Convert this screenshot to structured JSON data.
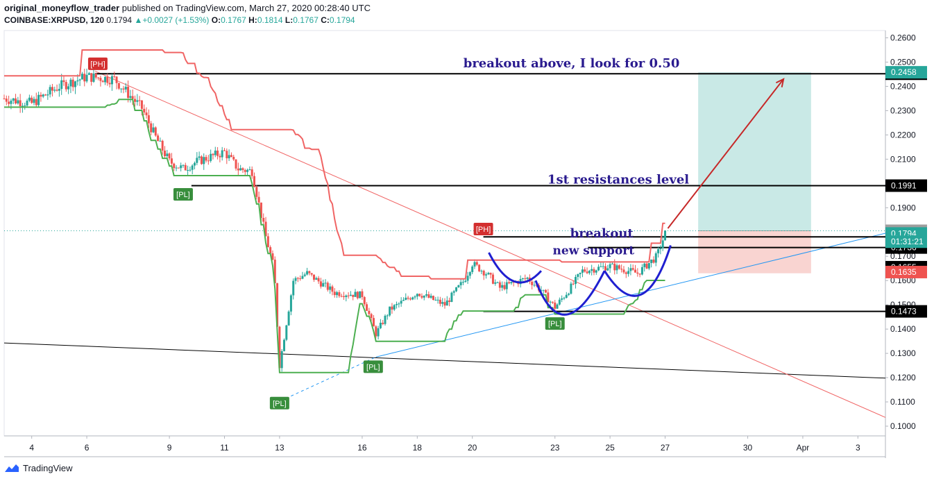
{
  "header": {
    "author": "original_moneyflow_trader",
    "published_text": "published on TradingView.com, March 27, 2020 00:28:40 UTC",
    "symbol": "COINBASE:XRPUSD, 120",
    "last": "0.1794",
    "change": "+0.0027 (+1.53%)",
    "o_label": "O:",
    "o": "0.1767",
    "h_label": "H:",
    "h": "0.1814",
    "l_label": "L:",
    "l": "0.1767",
    "c_label": "C:",
    "c": "0.1794"
  },
  "brand": "TradingView",
  "colors": {
    "up": "#26a69a",
    "down": "#ef5350",
    "trail": "#f06464",
    "support_line": "#4caf50",
    "annotation": "#2a1b8f",
    "arrow": "#c62828",
    "trend_blue": "#2196f3",
    "target_zone": "#b2dfdb",
    "stop_zone": "#f8c9c6"
  },
  "chart_data": {
    "type": "candlestick",
    "y_range": [
      0.096,
      0.263
    ],
    "x_range": [
      "2020-03-03",
      "2020-04-04"
    ],
    "y_ticks": [
      "0.2600",
      "0.2500",
      "0.2400",
      "0.2300",
      "0.2200",
      "0.2100",
      "0.2000",
      "0.1900",
      "0.1800",
      "0.1700",
      "0.1600",
      "0.1500",
      "0.1400",
      "0.1300",
      "0.1200",
      "0.1100",
      "0.1000"
    ],
    "x_ticks": [
      {
        "label": "4",
        "x": "2020-03-04"
      },
      {
        "label": "6",
        "x": "2020-03-06"
      },
      {
        "label": "9",
        "x": "2020-03-09"
      },
      {
        "label": "11",
        "x": "2020-03-11"
      },
      {
        "label": "13",
        "x": "2020-03-13"
      },
      {
        "label": "16",
        "x": "2020-03-16"
      },
      {
        "label": "18",
        "x": "2020-03-18"
      },
      {
        "label": "20",
        "x": "2020-03-20"
      },
      {
        "label": "23",
        "x": "2020-03-23"
      },
      {
        "label": "25",
        "x": "2020-03-25"
      },
      {
        "label": "27",
        "x": "2020-03-27"
      },
      {
        "label": "30",
        "x": "2020-03-30"
      },
      {
        "label": "Apr",
        "x": "2020-04-01"
      },
      {
        "label": "3",
        "x": "2020-04-03"
      }
    ],
    "price_series": [
      [
        "2020-03-03",
        0.235
      ],
      [
        "2020-03-04",
        0.233
      ],
      [
        "2020-03-05",
        0.24
      ],
      [
        "2020-03-06",
        0.244
      ],
      [
        "2020-03-07",
        0.243
      ],
      [
        "2020-03-08",
        0.231
      ],
      [
        "2020-03-08.5",
        0.219
      ],
      [
        "2020-03-09",
        0.209
      ],
      [
        "2020-03-09.5",
        0.206
      ],
      [
        "2020-03-10",
        0.209
      ],
      [
        "2020-03-11",
        0.213
      ],
      [
        "2020-03-11.5",
        0.206
      ],
      [
        "2020-03-12",
        0.205
      ],
      [
        "2020-03-12.5",
        0.178
      ],
      [
        "2020-03-12.8",
        0.165
      ],
      [
        "2020-03-13",
        0.125
      ],
      [
        "2020-03-13.5",
        0.16
      ],
      [
        "2020-03-14",
        0.163
      ],
      [
        "2020-03-15",
        0.155
      ],
      [
        "2020-03-16",
        0.154
      ],
      [
        "2020-03-16.5",
        0.138
      ],
      [
        "2020-03-17",
        0.148
      ],
      [
        "2020-03-18",
        0.155
      ],
      [
        "2020-03-19",
        0.15
      ],
      [
        "2020-03-19.7",
        0.16
      ],
      [
        "2020-03-20",
        0.167
      ],
      [
        "2020-03-20.5",
        0.163
      ],
      [
        "2020-03-21",
        0.157
      ],
      [
        "2020-03-22",
        0.161
      ],
      [
        "2020-03-22.5",
        0.156
      ],
      [
        "2020-03-23",
        0.149
      ],
      [
        "2020-03-23.5",
        0.156
      ],
      [
        "2020-03-24",
        0.164
      ],
      [
        "2020-03-25",
        0.166
      ],
      [
        "2020-03-26",
        0.163
      ],
      [
        "2020-03-26.7",
        0.17
      ],
      [
        "2020-03-27",
        0.1794
      ]
    ],
    "levels": [
      {
        "value": 0.2452,
        "label": "0.2452"
      },
      {
        "value": 0.1991,
        "label": "0.1991"
      },
      {
        "value": 0.1736,
        "label": "0.1736"
      },
      {
        "value": 0.1473,
        "label": "0.1473"
      }
    ],
    "price_tags": [
      {
        "value": 0.2458,
        "label": "0.2458",
        "color": "#26a69a"
      },
      {
        "value": 0.1805,
        "label": "0.1805",
        "color": "#9e9e9e"
      },
      {
        "value": 0.1794,
        "label": "0.1794",
        "color": "#26a69a"
      },
      {
        "value": 0.176,
        "label": "01:31:21",
        "color": "#26a69a"
      },
      {
        "value": 0.1655,
        "label": "0.1655",
        "color": "#000000"
      },
      {
        "value": 0.1635,
        "label": "0.1635",
        "color": "#ef5350"
      }
    ],
    "pivot_labels": [
      {
        "text": "[PH]",
        "x": "2020-03-06.4",
        "y": 0.2493,
        "kind": "high"
      },
      {
        "text": "[PL]",
        "x": "2020-03-09.5",
        "y": 0.1955,
        "kind": "low"
      },
      {
        "text": "[PL]",
        "x": "2020-03-13",
        "y": 0.1095,
        "kind": "low"
      },
      {
        "text": "[PL]",
        "x": "2020-03-16.4",
        "y": 0.1245,
        "kind": "low"
      },
      {
        "text": "[PH]",
        "x": "2020-03-20.4",
        "y": 0.1812,
        "kind": "high"
      },
      {
        "text": "[PL]",
        "x": "2020-03-23",
        "y": 0.1423,
        "kind": "low"
      }
    ],
    "annotations": [
      {
        "text": "breakout above, I look for 0.50",
        "x": "2020-03-23.6",
        "y": 0.2478,
        "size": 18
      },
      {
        "text": "1st resistances level",
        "x": "2020-03-25.3",
        "y": 0.2,
        "size": 18
      },
      {
        "text": "breakout",
        "x": "2020-03-24.7",
        "y": 0.1778,
        "size": 18
      },
      {
        "text": "new support",
        "x": "2020-03-24.4",
        "y": 0.1708,
        "size": 17
      }
    ],
    "trade_box": {
      "x_start": "2020-03-28.2",
      "x_end": "2020-04-01.3",
      "entry": 0.1805,
      "target": 0.2458,
      "stop": 0.163
    }
  }
}
